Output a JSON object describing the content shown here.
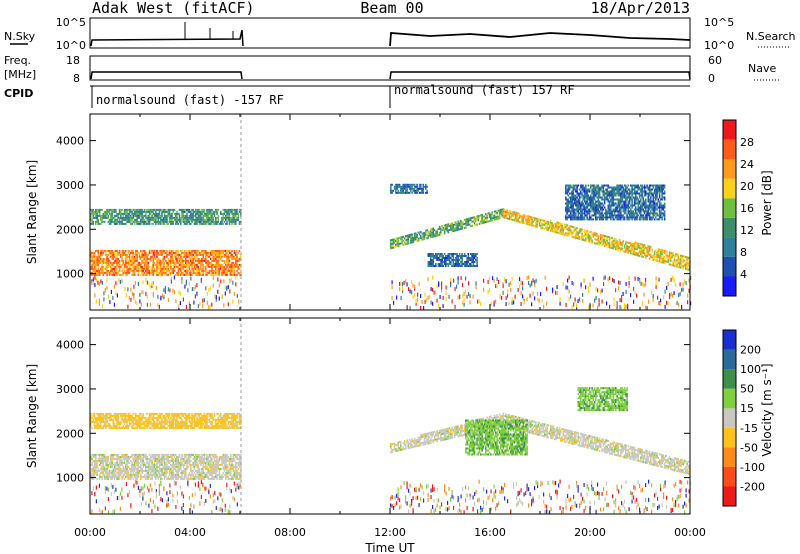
{
  "header": {
    "title_left": "Adak West (fitACF)",
    "title_center": "Beam 00",
    "title_right": "18/Apr/2013"
  },
  "top_panels": {
    "nsky_label": "N.Sky",
    "nsky_ticks": [
      "10^5",
      "10^0"
    ],
    "nsearch_label": "N.Search",
    "nsearch_ticks": [
      "10^5",
      "10^0"
    ],
    "freq_label": "Freq.",
    "freq_unit": "[MHz]",
    "freq_ticks": [
      "18",
      "8"
    ],
    "nave_label": "Nave",
    "nave_ticks": [
      "60",
      "0"
    ],
    "cpid_label": "CPID",
    "cpid_segments": [
      {
        "text": "normalsound (fast) -157 RF",
        "start_hour": 0,
        "end_hour": 6
      },
      {
        "text": "normalsound (fast) 157 RF",
        "start_hour": 12,
        "end_hour": 24
      }
    ]
  },
  "x_axis": {
    "label": "Time UT",
    "ticks": [
      "00:00",
      "04:00",
      "08:00",
      "12:00",
      "16:00",
      "20:00",
      "00:00"
    ],
    "range_hours": [
      0,
      24
    ]
  },
  "power_panel": {
    "ylabel": "Slant Range [km]",
    "yticks": [
      "1000",
      "2000",
      "3000",
      "4000"
    ],
    "colorbar_label": "Power [dB]",
    "colorbar_ticks": [
      "4",
      "8",
      "12",
      "16",
      "20",
      "24",
      "28"
    ],
    "colors": [
      "#1a1aff",
      "#1f4fb0",
      "#2f7f9f",
      "#3d8f6a",
      "#6fbf3f",
      "#ffd21a",
      "#ff9a1a",
      "#ff5a1a",
      "#ee1a1a"
    ]
  },
  "velocity_panel": {
    "ylabel": "Slant Range [km]",
    "yticks": [
      "1000",
      "2000",
      "3000",
      "4000"
    ],
    "colorbar_label": "Velocity [m s⁻¹]",
    "colorbar_ticks": [
      "200",
      "100",
      "50",
      "15",
      "-15",
      "-50",
      "-100",
      "-200"
    ],
    "colors": [
      "#1a2fd0",
      "#2a6b9a",
      "#3d8f4a",
      "#7fcf3f",
      "#c8c8c0",
      "#ffc21a",
      "#ff8a1a",
      "#ff4a1a",
      "#ee1a1a"
    ]
  },
  "chart_data": {
    "type": "heatmap",
    "title": "Adak West (fitACF) Beam 00 18/Apr/2013",
    "xlabel": "Time UT",
    "ylabel": "Slant Range [km]",
    "xlim": [
      0,
      24
    ],
    "ylim": [
      180,
      4600
    ],
    "data_gaps_hours": [
      [
        6,
        12
      ]
    ],
    "echo_bands_power": [
      {
        "start_hour": 0,
        "end_hour": 6,
        "range_km": [
          950,
          1500
        ],
        "power_db": 24
      },
      {
        "start_hour": 0,
        "end_hour": 6,
        "range_km": [
          2100,
          2450
        ],
        "power_db": 12
      },
      {
        "start_hour": 12,
        "end_hour": 16.5,
        "range_km_start": [
          1550,
          1750
        ],
        "range_km_end": [
          2250,
          2450
        ],
        "power_db": 14
      },
      {
        "start_hour": 16.5,
        "end_hour": 24,
        "range_km_start": [
          2250,
          2450
        ],
        "range_km_end": [
          1050,
          1350
        ],
        "power_db": 20
      },
      {
        "start_hour": 12,
        "end_hour": 13.5,
        "range_km": [
          2800,
          3000
        ],
        "power_db": 8
      },
      {
        "start_hour": 13.5,
        "end_hour": 15.5,
        "range_km": [
          1150,
          1450
        ],
        "power_db": 8
      },
      {
        "start_hour": 19,
        "end_hour": 23,
        "range_km": [
          2200,
          3000
        ],
        "power_db": 8
      }
    ],
    "echo_bands_velocity": [
      {
        "start_hour": 0,
        "end_hour": 6,
        "range_km": [
          950,
          1500
        ],
        "velocity_ms": 0
      },
      {
        "start_hour": 0,
        "end_hour": 6,
        "range_km": [
          2100,
          2450
        ],
        "velocity_ms": -30
      },
      {
        "start_hour": 12,
        "end_hour": 16.5,
        "range_km_start": [
          1550,
          1750
        ],
        "range_km_end": [
          2150,
          2450
        ],
        "velocity_ms": 0
      },
      {
        "start_hour": 16.5,
        "end_hour": 24,
        "range_km_start": [
          2150,
          2450
        ],
        "range_km_end": [
          1050,
          1350
        ],
        "velocity_ms": 0
      },
      {
        "start_hour": 15,
        "end_hour": 17.5,
        "range_km": [
          1500,
          2300
        ],
        "velocity_ms": 40
      },
      {
        "start_hour": 19.5,
        "end_hour": 21.5,
        "range_km": [
          2500,
          3000
        ],
        "velocity_ms": 40
      }
    ]
  }
}
